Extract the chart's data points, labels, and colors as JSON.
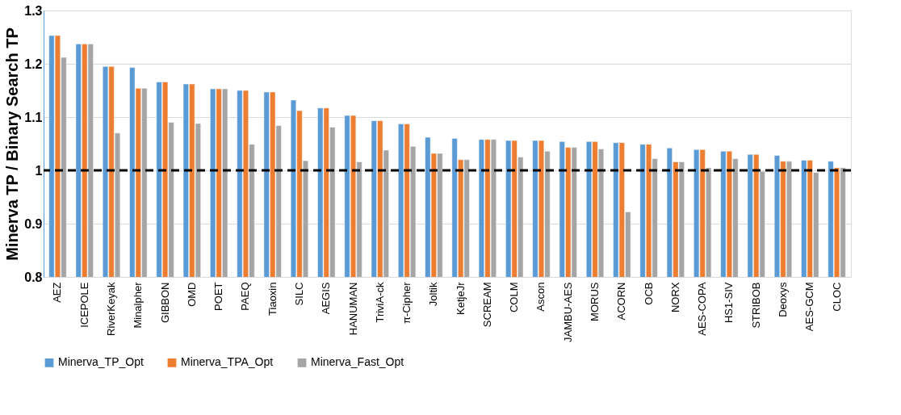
{
  "chart_data": {
    "type": "bar",
    "ylabel": "Minerva TP / Binary Search TP",
    "categories": [
      "AEZ",
      "ICEPOLE",
      "RiverKeyak",
      "Minalpher",
      "GIBBON",
      "OMD",
      "POET",
      "PAEQ",
      "Tiaoxin",
      "SILC",
      "AEGIS",
      "HANUMAN",
      "TriviA-ck",
      "π-Cipher",
      "Joltik",
      "KetjeJr",
      "SCREAM",
      "COLM",
      "Ascon",
      "JAMBU-AES",
      "MORUS",
      "ACORN",
      "OCB",
      "NORX",
      "AES-COPA",
      "HS1-SIV",
      "STRIBOB",
      "Deoxys",
      "AES-GCM",
      "CLOC"
    ],
    "series": [
      {
        "name": "Minerva_TP_Opt",
        "color": "#5b9bd5",
        "values": [
          1.253,
          1.237,
          1.195,
          1.193,
          1.166,
          1.162,
          1.153,
          1.15,
          1.147,
          1.132,
          1.117,
          1.103,
          1.093,
          1.087,
          1.062,
          1.06,
          1.058,
          1.056,
          1.056,
          1.054,
          1.054,
          1.052,
          1.049,
          1.042,
          1.039,
          1.036,
          1.03,
          1.028,
          1.019,
          1.017
        ]
      },
      {
        "name": "Minerva_TPA_Opt",
        "color": "#ed7d31",
        "values": [
          1.253,
          1.237,
          1.195,
          1.154,
          1.166,
          1.162,
          1.153,
          1.15,
          1.147,
          1.112,
          1.117,
          1.103,
          1.093,
          1.087,
          1.032,
          1.02,
          1.058,
          1.056,
          1.056,
          1.043,
          1.054,
          1.052,
          1.049,
          1.016,
          1.039,
          1.036,
          1.03,
          1.017,
          1.019,
          1.005
        ]
      },
      {
        "name": "Minerva_Fast_Opt",
        "color": "#a5a5a5",
        "values": [
          1.212,
          1.237,
          1.07,
          1.154,
          1.09,
          1.088,
          1.153,
          1.049,
          1.084,
          1.018,
          1.081,
          1.016,
          1.038,
          1.045,
          1.032,
          1.02,
          1.058,
          1.025,
          1.036,
          1.043,
          1.04,
          0.922,
          1.022,
          1.016,
          1.005,
          1.022,
          0.998,
          1.017,
          0.996,
          1.005
        ]
      }
    ],
    "ylim": [
      0.8,
      1.3
    ],
    "yticks": [
      0.8,
      0.9,
      1,
      1.1,
      1.2,
      1.3
    ],
    "ref_lines": [
      {
        "axis": "y",
        "value": 1,
        "color": "#000000",
        "line_style": "dashed"
      }
    ],
    "grid": "y",
    "legend": "bottom"
  }
}
